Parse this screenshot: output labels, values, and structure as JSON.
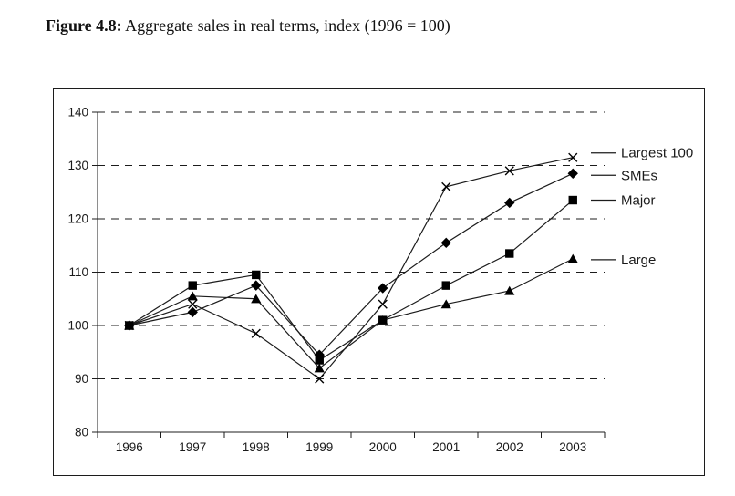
{
  "figure": {
    "title_bold": "Figure 4.8:",
    "title_rest": " Aggregate sales in real terms, index (1996 = 100)"
  },
  "chart_data": {
    "type": "line",
    "title": "Figure 4.8: Aggregate sales in real terms, index (1996 = 100)",
    "categories": [
      "1996",
      "1997",
      "1998",
      "1999",
      "2000",
      "2001",
      "2002",
      "2003"
    ],
    "series": [
      {
        "name": "Largest 100",
        "marker": "x",
        "values": [
          100,
          104,
          98.5,
          90,
          104,
          126,
          129,
          131.5
        ]
      },
      {
        "name": "SMEs",
        "marker": "diamond",
        "values": [
          100,
          102.5,
          107.5,
          94.5,
          107,
          115.5,
          123,
          128.5
        ]
      },
      {
        "name": "Major",
        "marker": "square",
        "values": [
          100,
          107.5,
          109.5,
          93.5,
          101,
          107.5,
          113.5,
          123.5
        ]
      },
      {
        "name": "Large",
        "marker": "triangle",
        "values": [
          100,
          105.5,
          105,
          92,
          101,
          104,
          106.5,
          112.5
        ]
      }
    ],
    "ylim": [
      80,
      140
    ],
    "yticks": [
      80,
      90,
      100,
      110,
      120,
      130,
      140
    ],
    "xlabel": "",
    "ylabel": "",
    "grid": "horizontal-dashed",
    "legend_position": "right-of-plot",
    "baseline_note": "1996 = 100",
    "colors": {
      "line": "#1c1c1c",
      "marker": "#000000",
      "grid": "#1c1c1c",
      "axis": "#1c1c1c",
      "text": "#1a1a1a",
      "background": "#ffffff"
    }
  }
}
